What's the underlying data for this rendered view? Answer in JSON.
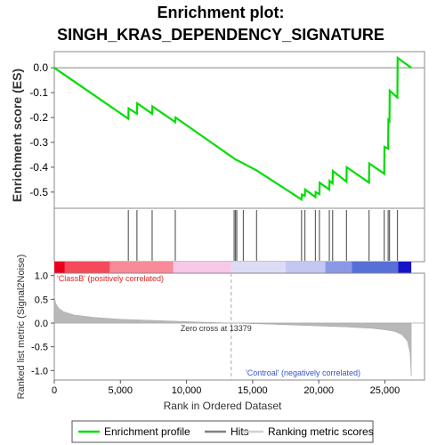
{
  "chart_data": {
    "type": "line",
    "title_line1": "Enrichment plot:",
    "title_line2": "SINGH_KRAS_DEPENDENCY_SIGNATURE",
    "top_panel": {
      "ylabel": "Enrichment score (ES)",
      "ylim": [
        -0.565,
        0.065
      ],
      "yticks": [
        0.0,
        -0.1,
        -0.2,
        -0.3,
        -0.4,
        -0.5
      ],
      "ytick_labels": [
        "0.0",
        "-0.1",
        "-0.2",
        "-0.3",
        "-0.4",
        "-0.5"
      ],
      "series": [
        {
          "color": "#00dd00",
          "x": [
            0,
            5600,
            5620,
            6250,
            6270,
            7400,
            7420,
            9150,
            9170,
            13600,
            13700,
            14300,
            15300,
            18700,
            18720,
            18950,
            18970,
            19750,
            19770,
            20050,
            20070,
            20800,
            20820,
            21050,
            21070,
            22100,
            22120,
            23800,
            23820,
            24950,
            24970,
            25250,
            25270,
            25350,
            25370,
            25950,
            25970,
            27000
          ],
          "y": [
            0.0,
            -0.205,
            -0.163,
            -0.185,
            -0.143,
            -0.185,
            -0.155,
            -0.218,
            -0.2,
            -0.365,
            -0.368,
            -0.385,
            -0.413,
            -0.53,
            -0.51,
            -0.515,
            -0.49,
            -0.52,
            -0.5,
            -0.508,
            -0.462,
            -0.49,
            -0.455,
            -0.465,
            -0.415,
            -0.458,
            -0.4,
            -0.462,
            -0.385,
            -0.426,
            -0.318,
            -0.325,
            -0.21,
            -0.215,
            -0.092,
            -0.12,
            0.04,
            0.0
          ]
        }
      ]
    },
    "hits": [
      5600,
      6250,
      7400,
      9150,
      13600,
      13700,
      13800,
      14300,
      15300,
      18700,
      18950,
      19750,
      20050,
      20800,
      21050,
      22100,
      23800,
      24950,
      25250,
      25350,
      25950
    ],
    "colorbar": {
      "segments": [
        {
          "from": 0,
          "to": 800,
          "color": "#e8001a"
        },
        {
          "from": 800,
          "to": 4200,
          "color": "#f44a5a"
        },
        {
          "from": 4200,
          "to": 9000,
          "color": "#f98a98"
        },
        {
          "from": 9000,
          "to": 13379,
          "color": "#f8c8e6"
        },
        {
          "from": 13379,
          "to": 17500,
          "color": "#dcdcf6"
        },
        {
          "from": 17500,
          "to": 20500,
          "color": "#c2c8f2"
        },
        {
          "from": 20500,
          "to": 22500,
          "color": "#8a98e6"
        },
        {
          "from": 22500,
          "to": 26000,
          "color": "#5670d8"
        },
        {
          "from": 26000,
          "to": 27000,
          "color": "#1414c8"
        }
      ]
    },
    "bottom_panel": {
      "ylabel": "Ranked list metric (Signal2Noise)",
      "xlabel": "Rank in Ordered Dataset",
      "ylim": [
        -1.2,
        1.05
      ],
      "yticks": [
        1.0,
        0.5,
        0.0,
        -0.5,
        -1.0
      ],
      "ytick_labels": [
        "1.0",
        "0.5",
        "0.0",
        "-0.5",
        "-1.0"
      ],
      "xlim": [
        0,
        28000
      ],
      "xticks": [
        0,
        5000,
        10000,
        15000,
        20000,
        25000
      ],
      "xtick_labels": [
        "0",
        "5,000",
        "10,000",
        "15,000",
        "20,000",
        "25,000"
      ],
      "metric_x": [
        0,
        100,
        300,
        700,
        1500,
        3000,
        5000,
        8000,
        11000,
        13379,
        16000,
        19000,
        22000,
        24000,
        25000,
        25800,
        26300,
        26700,
        26900,
        27000
      ],
      "metric_y": [
        0.58,
        0.42,
        0.32,
        0.24,
        0.17,
        0.12,
        0.08,
        0.05,
        0.02,
        0.0,
        -0.02,
        -0.05,
        -0.08,
        -0.11,
        -0.14,
        -0.18,
        -0.25,
        -0.38,
        -0.62,
        -1.12
      ],
      "zero_cross_label": "Zero cross at 13379",
      "zero_cross_x": 13379,
      "classB_label": "'ClassB' (positively correlated)",
      "control_label": "'Controal' (negatively correlated)"
    },
    "legend": {
      "placement": "bottom",
      "entries": [
        {
          "label": "Enrichment profile",
          "color": "#00dd00"
        },
        {
          "label": "Hits",
          "color": "#808080"
        },
        {
          "label": "Ranking metric scores",
          "color": "#d0d0d0"
        }
      ]
    }
  }
}
